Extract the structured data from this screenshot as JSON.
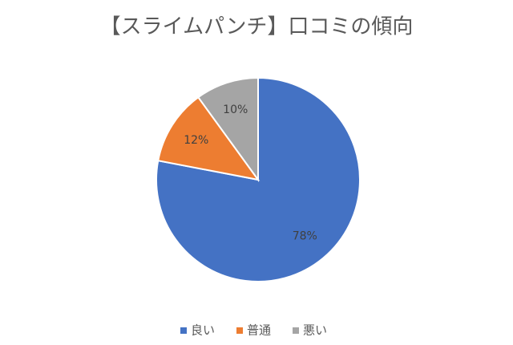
{
  "chart_data": {
    "type": "pie",
    "title": "【スライムパンチ】口コミの傾向",
    "categories": [
      "良い",
      "普通",
      "悪い"
    ],
    "values": [
      78,
      12,
      10
    ],
    "value_labels": [
      "78%",
      "12%",
      "10%"
    ],
    "colors": [
      "#4472c4",
      "#ed7d31",
      "#a5a5a5"
    ],
    "legend": "bottom"
  }
}
